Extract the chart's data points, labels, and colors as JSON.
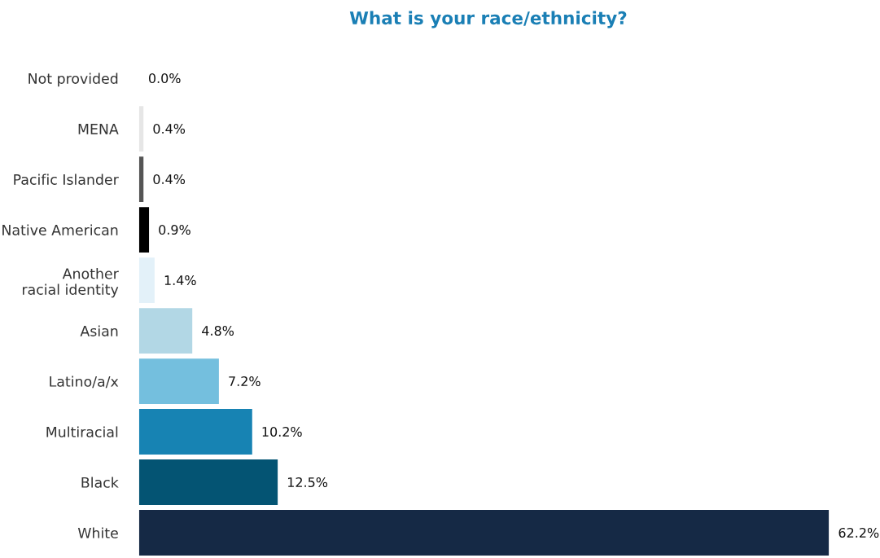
{
  "chart_data": {
    "type": "bar",
    "orientation": "horizontal",
    "title": "What is your race/ethnicity?",
    "categories": [
      "Not provided",
      "MENA",
      "Pacific Islander",
      "Native American",
      "Another\nracial identity",
      "Asian",
      "Latino/a/x",
      "Multiracial",
      "Black",
      "White"
    ],
    "values": [
      0.0,
      0.4,
      0.4,
      0.9,
      1.4,
      4.8,
      7.2,
      10.2,
      12.5,
      62.2
    ],
    "value_labels": [
      "0.0%",
      "0.4%",
      "0.4%",
      "0.9%",
      "1.4%",
      "4.8%",
      "7.2%",
      "10.2%",
      "12.5%",
      "62.2%"
    ],
    "colors": [
      "#e6e6e6",
      "#e6e6e6",
      "#555555",
      "#000000",
      "#e3f1f9",
      "#b2d7e5",
      "#74bfde",
      "#1783b3",
      "#045473",
      "#152945"
    ],
    "grid": false,
    "legend": false
  }
}
